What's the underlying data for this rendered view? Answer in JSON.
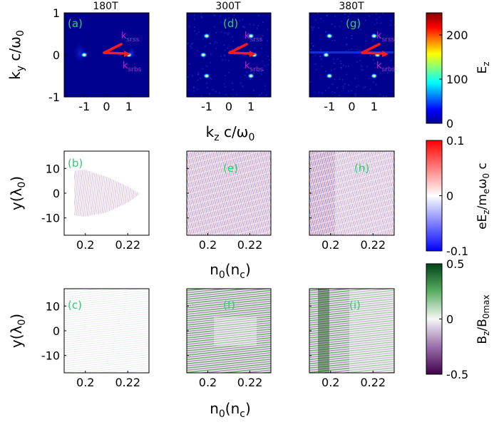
{
  "figure": {
    "column_titles": [
      "180T",
      "300T",
      "380T"
    ],
    "panel_labels": [
      "(a)",
      "(d)",
      "(g)",
      "(b)",
      "(e)",
      "(h)",
      "(c)",
      "(f)",
      "(i)"
    ],
    "row1": {
      "ylabel": "k_y c/ω_0",
      "xlabel": "k_z c/ω_0",
      "y_ticks": [
        "1",
        "0",
        "-1"
      ],
      "x_ticks": [
        "-1",
        "0",
        "1"
      ],
      "arrow_upper_label": "k_srss",
      "arrow_lower_label": "k_srbs"
    },
    "row2": {
      "ylabel": "y(λ_0)",
      "xlabel": "n_0(n_c)",
      "y_ticks": [
        "10",
        "0",
        "-10"
      ],
      "x_ticks": [
        "0.2",
        "0.22"
      ]
    },
    "row3": {
      "ylabel": "y(λ_0)",
      "xlabel": "n_0(n_c)",
      "y_ticks": [
        "10",
        "0",
        "-10"
      ],
      "x_ticks": [
        "0.2",
        "0.22"
      ]
    },
    "colorbars": [
      {
        "label": "E_z",
        "ticks": [
          "200",
          "100",
          "0"
        ],
        "cmap": "jet",
        "range": [
          0,
          250
        ]
      },
      {
        "label": "eE_z/m_eω_0 c",
        "ticks": [
          "0.1",
          "0",
          "-0.1"
        ],
        "cmap": "bwr",
        "range": [
          -0.1,
          0.1
        ]
      },
      {
        "label": "B_z/B_0max",
        "ticks": [
          "0.5",
          "0",
          "-0.5"
        ],
        "cmap": "PRGn",
        "range": [
          -0.5,
          0.5
        ]
      }
    ],
    "colors": {
      "arrow": "#ff1a1a",
      "arrow_label": "#d21ad2",
      "panel_label": "#2ecc71",
      "jet_bg": "#00008f"
    }
  },
  "chart_data": [
    {
      "type": "heatmap",
      "panel": "(a)",
      "title": "180T",
      "xlabel": "k_z c/ω_0",
      "ylabel": "k_y c/ω_0",
      "xlim": [
        -1.9,
        1.9
      ],
      "ylim": [
        -1,
        1
      ],
      "colorbar": "E_z",
      "colorbar_range": [
        0,
        250
      ],
      "hotspots": [
        {
          "x": -1.0,
          "y": 0.0
        },
        {
          "x": 1.0,
          "y": 0.0
        }
      ]
    },
    {
      "type": "heatmap",
      "panel": "(d)",
      "title": "300T",
      "xlabel": "k_z c/ω_0",
      "ylabel": "k_y c/ω_0",
      "xlim": [
        -1.9,
        1.9
      ],
      "ylim": [
        -1,
        1
      ],
      "colorbar": "E_z",
      "colorbar_range": [
        0,
        250
      ],
      "hotspots": [
        {
          "x": -1.0,
          "y": 0.45
        },
        {
          "x": -1.0,
          "y": -0.5
        },
        {
          "x": -1.15,
          "y": 0.0
        },
        {
          "x": 1.0,
          "y": 0.45
        },
        {
          "x": 1.0,
          "y": -0.5
        },
        {
          "x": 1.15,
          "y": 0.0
        }
      ]
    },
    {
      "type": "heatmap",
      "panel": "(g)",
      "title": "380T",
      "xlabel": "k_z c/ω_0",
      "ylabel": "k_y c/ω_0",
      "xlim": [
        -1.9,
        1.9
      ],
      "ylim": [
        -1,
        1
      ],
      "colorbar": "E_z",
      "colorbar_range": [
        0,
        250
      ],
      "hotspots": [
        {
          "x": -1.0,
          "y": 0.45
        },
        {
          "x": -1.0,
          "y": -0.5
        },
        {
          "x": -1.15,
          "y": 0.0
        },
        {
          "x": 1.0,
          "y": 0.45
        },
        {
          "x": 1.0,
          "y": -0.5
        },
        {
          "x": 1.15,
          "y": 0.0
        }
      ]
    },
    {
      "type": "heatmap",
      "panel": "(b)",
      "xlabel": "n_0(n_c)",
      "ylabel": "y(λ_0)",
      "xlim": [
        0.19,
        0.23
      ],
      "ylim": [
        -17,
        17
      ],
      "colorbar": "eE_z/m_eω_0 c",
      "colorbar_range": [
        -0.1,
        0.1
      ]
    },
    {
      "type": "heatmap",
      "panel": "(e)",
      "xlabel": "n_0(n_c)",
      "ylabel": "y(λ_0)",
      "xlim": [
        0.19,
        0.23
      ],
      "ylim": [
        -17,
        17
      ],
      "colorbar": "eE_z/m_eω_0 c",
      "colorbar_range": [
        -0.1,
        0.1
      ]
    },
    {
      "type": "heatmap",
      "panel": "(h)",
      "xlabel": "n_0(n_c)",
      "ylabel": "y(λ_0)",
      "xlim": [
        0.19,
        0.23
      ],
      "ylim": [
        -17,
        17
      ],
      "colorbar": "eE_z/m_eω_0 c",
      "colorbar_range": [
        -0.1,
        0.1
      ]
    },
    {
      "type": "heatmap",
      "panel": "(c)",
      "xlabel": "n_0(n_c)",
      "ylabel": "y(λ_0)",
      "xlim": [
        0.19,
        0.23
      ],
      "ylim": [
        -17,
        17
      ],
      "colorbar": "B_z/B_0max",
      "colorbar_range": [
        -0.5,
        0.5
      ]
    },
    {
      "type": "heatmap",
      "panel": "(f)",
      "xlabel": "n_0(n_c)",
      "ylabel": "y(λ_0)",
      "xlim": [
        0.19,
        0.23
      ],
      "ylim": [
        -17,
        17
      ],
      "colorbar": "B_z/B_0max",
      "colorbar_range": [
        -0.5,
        0.5
      ]
    },
    {
      "type": "heatmap",
      "panel": "(i)",
      "xlabel": "n_0(n_c)",
      "ylabel": "y(λ_0)",
      "xlim": [
        0.19,
        0.23
      ],
      "ylim": [
        -17,
        17
      ],
      "colorbar": "B_z/B_0max",
      "colorbar_range": [
        -0.5,
        0.5
      ]
    }
  ]
}
